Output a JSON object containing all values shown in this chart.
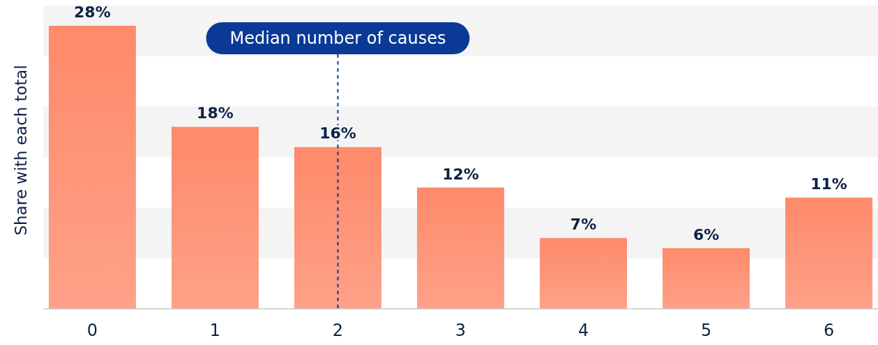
{
  "chart_data": {
    "type": "bar",
    "ylabel": "Share with each total",
    "categories": [
      "0",
      "1",
      "2",
      "3",
      "4",
      "5",
      "6"
    ],
    "values": [
      28,
      18,
      16,
      12,
      7,
      6,
      11
    ],
    "value_labels": [
      "28%",
      "18%",
      "16%",
      "12%",
      "7%",
      "6%",
      "11%"
    ],
    "color": "#fe8a6a",
    "ylim": [
      0,
      30
    ],
    "bands": [
      {
        "axis": "y",
        "from": 5,
        "to": 10,
        "color": "#f4f4f4"
      },
      {
        "axis": "y",
        "from": 15,
        "to": 20,
        "color": "#f4f4f4"
      },
      {
        "axis": "y",
        "from": 25,
        "to": 30,
        "color": "#f4f4f4"
      }
    ],
    "ref_lines": [
      {
        "axis": "x",
        "value": "2",
        "label": "Median number of causes",
        "color": "#0a3a96",
        "line_style": "dashed"
      }
    ]
  }
}
